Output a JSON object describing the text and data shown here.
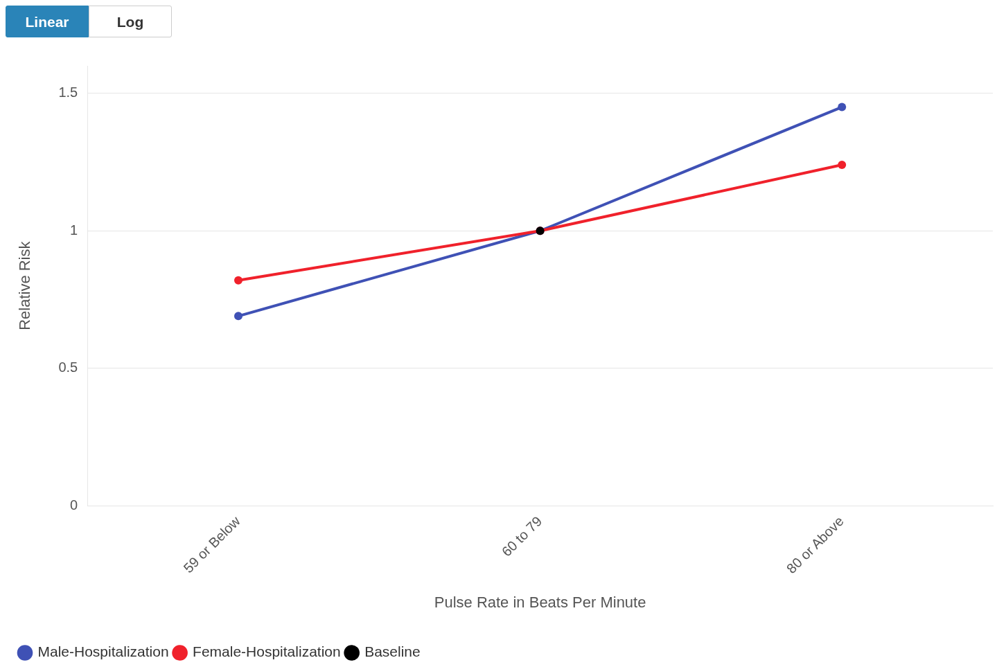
{
  "chart_data": {
    "type": "line",
    "xlabel": "Pulse Rate in Beats Per Minute",
    "ylabel": "Relative Risk",
    "categories": [
      "59 or Below",
      "60 to 79",
      "80 or Above"
    ],
    "series": [
      {
        "name": "Male-Hospitalization",
        "color": "#3f51b5",
        "values": [
          0.69,
          1,
          1.45
        ]
      },
      {
        "name": "Female-Hospitalization",
        "color": "#f0212b",
        "values": [
          0.82,
          1,
          1.24
        ]
      },
      {
        "name": "Baseline",
        "color": "#000000",
        "values": [
          null,
          1,
          null
        ]
      }
    ],
    "ylim": [
      0,
      1.6
    ],
    "yticks": [
      0,
      0.5,
      1,
      1.5
    ],
    "grid": "y",
    "legend": "bottom left",
    "marker": "circle",
    "line_style": "solid",
    "annotations": [
      "Linear",
      "Log"
    ]
  }
}
